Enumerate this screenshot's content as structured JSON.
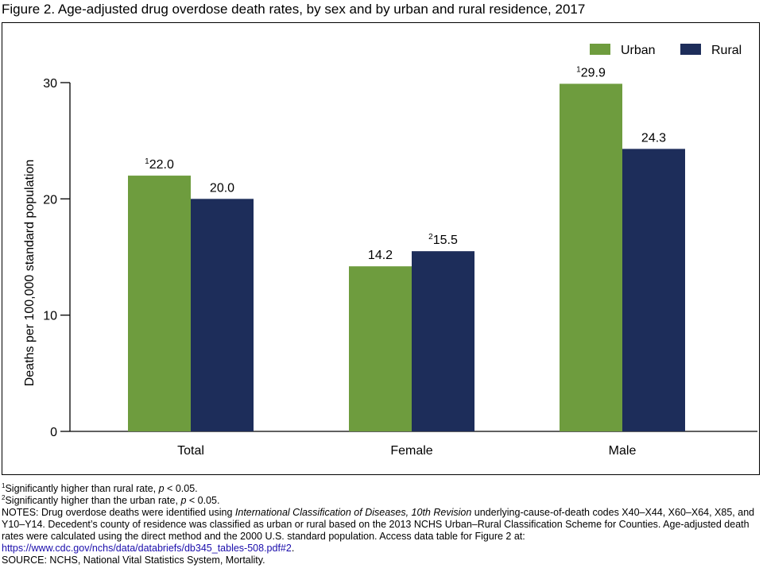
{
  "figure_title": "Figure 2. Age-adjusted drug overdose death rates, by sex and by urban and rural residence, 2017",
  "chart_data": {
    "type": "bar",
    "title": "",
    "xlabel": "",
    "ylabel": "Deaths per 100,000 standard population",
    "ylim": [
      0,
      30
    ],
    "yticks": [
      "0",
      "10",
      "20",
      "30"
    ],
    "grid": false,
    "legend_position": "top-right",
    "categories": [
      "Total",
      "Female",
      "Male"
    ],
    "series": [
      {
        "name": "Urban",
        "color": "#6e9c3e",
        "values": [
          22.0,
          14.2,
          29.9
        ],
        "labels": [
          "22.0",
          "14.2",
          "29.9"
        ],
        "label_superscripts": [
          "1",
          "",
          "1"
        ]
      },
      {
        "name": "Rural",
        "color": "#1d2d5a",
        "values": [
          20.0,
          15.5,
          24.3
        ],
        "labels": [
          "20.0",
          "15.5",
          "24.3"
        ],
        "label_superscripts": [
          "",
          "2",
          ""
        ]
      }
    ]
  },
  "footnotes": {
    "note1_marker": "1",
    "note1_text": "Significantly higher than rural rate, ",
    "note1_p": "p",
    "note1_tail": " < 0.05.",
    "note2_marker": "2",
    "note2_text": "Significantly higher than the urban rate, ",
    "note2_p": "p",
    "note2_tail": " < 0.05.",
    "notes_prefix": "NOTES: Drug overdose deaths were identified using ",
    "notes_italic": "International Classification of Diseases, 10th Revision",
    "notes_rest": " underlying-cause-of-death codes X40–X44, X60–X64, X85, and Y10–Y14. Decedent’s county of residence was classified as urban or rural based on the 2013 NCHS Urban–Rural Classification Scheme for Counties. Age-adjusted death rates were calculated using the direct method and the 2000 U.S. standard population. Access data table for Figure 2 at:",
    "link_text": "https://www.cdc.gov/nchs/data/databriefs/db345_tables-508.pdf#2",
    "link_suffix": ".",
    "source": "SOURCE: NCHS, National Vital Statistics System, Mortality."
  }
}
